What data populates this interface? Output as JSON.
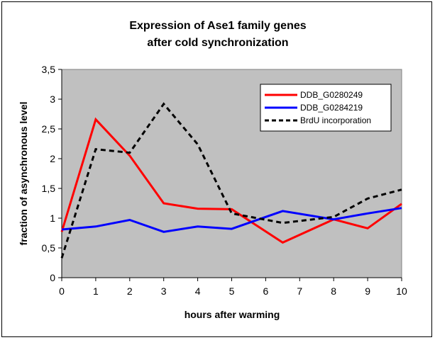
{
  "chart_data": {
    "type": "line",
    "title_lines": [
      "Expression  of Ase1 family genes",
      "after cold synchronization"
    ],
    "xlabel": "hours after warming",
    "ylabel": "fraction of asynchronous level",
    "x_tick_labels": [
      "0",
      "1",
      "2",
      "3",
      "4",
      "5",
      "6",
      "7",
      "8",
      "9",
      "10"
    ],
    "y_tick_labels": [
      "0",
      "0,5",
      "1",
      "1,5",
      "2",
      "2,5",
      "3",
      "3,5"
    ],
    "xlim": [
      0,
      10
    ],
    "ylim": [
      0,
      3.5
    ],
    "grid": false,
    "plot_background": "#c0c0c0",
    "legend_position": "top-right",
    "series": [
      {
        "name": "DDB_G0280249",
        "color": "#ff0000",
        "style": "solid",
        "x": [
          0,
          1,
          2,
          3,
          4,
          5,
          6.5,
          8,
          9,
          10
        ],
        "y": [
          0.77,
          2.66,
          2.05,
          1.25,
          1.16,
          1.15,
          0.59,
          0.98,
          0.83,
          1.24
        ]
      },
      {
        "name": "DDB_G0284219",
        "color": "#0000ff",
        "style": "solid",
        "x": [
          0,
          1,
          2,
          3,
          4,
          5,
          6.5,
          8,
          9,
          10
        ],
        "y": [
          0.81,
          0.86,
          0.97,
          0.77,
          0.86,
          0.82,
          1.12,
          0.98,
          1.08,
          1.17
        ]
      },
      {
        "name": "BrdU incorporation",
        "color": "#000000",
        "style": "dashed",
        "x": [
          0,
          1,
          2,
          3,
          4,
          5,
          6.5,
          8,
          9,
          10
        ],
        "y": [
          0.33,
          2.16,
          2.1,
          2.92,
          2.24,
          1.08,
          0.92,
          1.02,
          1.33,
          1.48
        ]
      }
    ]
  }
}
